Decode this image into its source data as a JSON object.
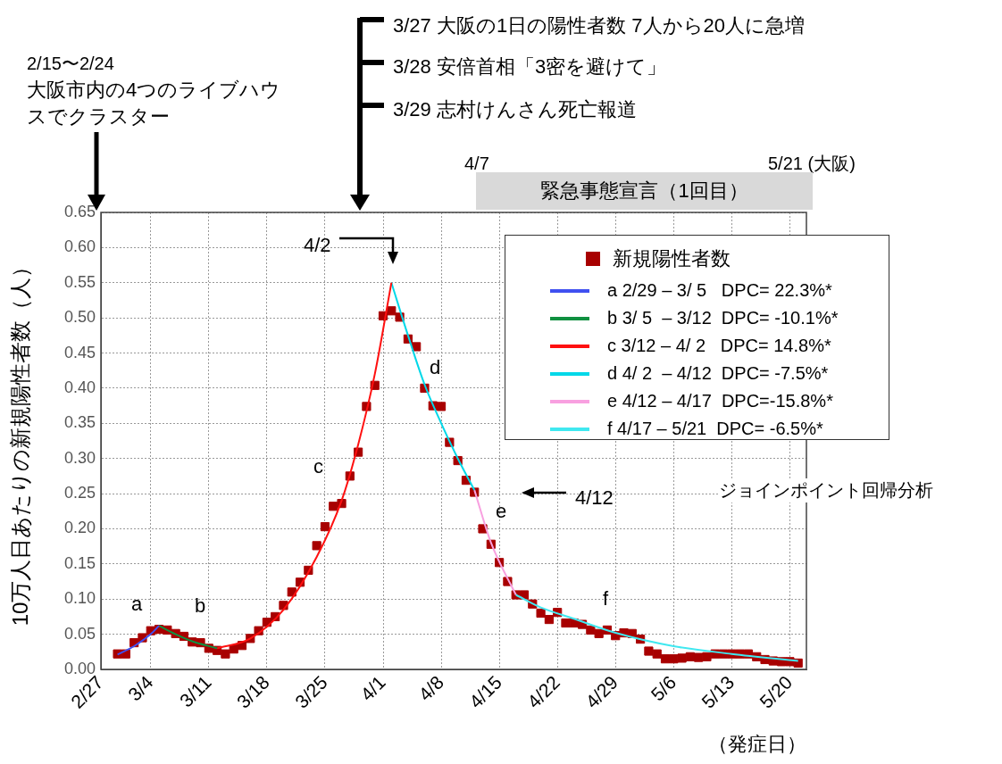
{
  "chart_data": {
    "type": "scatter",
    "ylabel": "10万人日あたりの新規陽性者数（人）",
    "xlabel": "（発症日）",
    "xlim": [
      "--02-27",
      "--05-22"
    ],
    "xticks": [
      {
        "value": "--02-27",
        "label": "2/27"
      },
      {
        "value": "--03-04",
        "label": "3/4"
      },
      {
        "value": "--03-11",
        "label": "3/11"
      },
      {
        "value": "--03-18",
        "label": "3/18"
      },
      {
        "value": "--03-25",
        "label": "3/25"
      },
      {
        "value": "--04-01",
        "label": "4/1"
      },
      {
        "value": "--04-08",
        "label": "4/8"
      },
      {
        "value": "--04-15",
        "label": "4/15"
      },
      {
        "value": "--04-22",
        "label": "4/22"
      },
      {
        "value": "--04-29",
        "label": "4/29"
      },
      {
        "value": "--05-06",
        "label": "5/6"
      },
      {
        "value": "--05-13",
        "label": "5/13"
      },
      {
        "value": "--05-20",
        "label": "5/20"
      }
    ],
    "ylim": [
      0,
      0.65
    ],
    "yticks": [
      {
        "value": 0,
        "label": "0.00"
      },
      {
        "value": 0.05,
        "label": "0.05"
      },
      {
        "value": 0.1,
        "label": "0.10"
      },
      {
        "value": 0.15,
        "label": "0.15"
      },
      {
        "value": 0.2,
        "label": "0.20"
      },
      {
        "value": 0.25,
        "label": "0.25"
      },
      {
        "value": 0.3,
        "label": "0.30"
      },
      {
        "value": 0.35,
        "label": "0.35"
      },
      {
        "value": 0.4,
        "label": "0.40"
      },
      {
        "value": 0.45,
        "label": "0.45"
      },
      {
        "value": 0.5,
        "label": "0.50"
      },
      {
        "value": 0.55,
        "label": "0.55"
      },
      {
        "value": 0.6,
        "label": "0.60"
      },
      {
        "value": 0.65,
        "label": "0.65"
      }
    ],
    "grid": true,
    "legend": "top right",
    "series": [
      {
        "name": "新規陽性者数",
        "color": "#a80000",
        "marker": "square",
        "x": [
          "--02-29",
          "--03-01",
          "--03-02",
          "--03-03",
          "--03-04",
          "--03-05",
          "--03-06",
          "--03-07",
          "--03-08",
          "--03-09",
          "--03-10",
          "--03-11",
          "--03-12",
          "--03-13",
          "--03-14",
          "--03-15",
          "--03-16",
          "--03-17",
          "--03-18",
          "--03-19",
          "--03-20",
          "--03-21",
          "--03-22",
          "--03-23",
          "--03-24",
          "--03-25",
          "--03-26",
          "--03-27",
          "--03-28",
          "--03-29",
          "--03-30",
          "--03-31",
          "--04-01",
          "--04-02",
          "--04-03",
          "--04-04",
          "--04-05",
          "--04-06",
          "--04-07",
          "--04-08",
          "--04-09",
          "--04-10",
          "--04-11",
          "--04-12",
          "--04-13",
          "--04-14",
          "--04-15",
          "--04-16",
          "--04-17",
          "--04-18",
          "--04-19",
          "--04-20",
          "--04-21",
          "--04-22",
          "--04-23",
          "--04-24",
          "--04-25",
          "--04-26",
          "--04-27",
          "--04-28",
          "--04-29",
          "--04-30",
          "--05-01",
          "--05-02",
          "--05-03",
          "--05-04",
          "--05-05",
          "--05-06",
          "--05-07",
          "--05-08",
          "--05-09",
          "--05-10",
          "--05-11",
          "--05-12",
          "--05-13",
          "--05-14",
          "--05-15",
          "--05-16",
          "--05-17",
          "--05-18",
          "--05-19",
          "--05-20",
          "--05-21"
        ],
        "values": [
          0.022,
          0.022,
          0.038,
          0.045,
          0.055,
          0.057,
          0.056,
          0.051,
          0.047,
          0.039,
          0.038,
          0.03,
          0.027,
          0.022,
          0.029,
          0.034,
          0.044,
          0.055,
          0.067,
          0.075,
          0.091,
          0.11,
          0.124,
          0.141,
          0.176,
          0.203,
          0.232,
          0.236,
          0.275,
          0.309,
          0.374,
          0.404,
          0.503,
          0.51,
          0.501,
          0.47,
          0.459,
          0.4,
          0.375,
          0.374,
          0.323,
          0.297,
          0.269,
          0.252,
          0.2,
          0.178,
          0.152,
          0.125,
          0.106,
          0.106,
          0.093,
          0.08,
          0.071,
          0.081,
          0.066,
          0.066,
          0.064,
          0.056,
          0.051,
          0.056,
          0.048,
          0.052,
          0.051,
          0.043,
          0.026,
          0.022,
          0.015,
          0.015,
          0.016,
          0.018,
          0.017,
          0.018,
          0.022,
          0.022,
          0.022,
          0.022,
          0.022,
          0.018,
          0.014,
          0.012,
          0.011,
          0.011,
          0.009
        ]
      },
      {
        "type": "line",
        "name": "a 2/29 – 3/ 5   DPC= 22.3%*",
        "color": "#4050f0",
        "x": [
          "--02-29",
          "--03-02",
          "--03-04",
          "--03-05"
        ],
        "values": [
          0.021,
          0.033,
          0.05,
          0.062
        ]
      },
      {
        "type": "line",
        "name": "b 3/ 5  – 3/12  DPC= -10.1%*",
        "color": "#109040",
        "x": [
          "--03-05",
          "--03-07",
          "--03-09",
          "--03-12"
        ],
        "values": [
          0.062,
          0.05,
          0.04,
          0.03
        ]
      },
      {
        "type": "line",
        "name": "c 3/12 – 4/ 2   DPC= 14.8%*",
        "color": "#ff1010",
        "x": [
          "--03-12",
          "--03-16",
          "--03-20",
          "--03-24",
          "--03-27",
          "--03-29",
          "--03-31",
          "--04-02"
        ],
        "values": [
          0.03,
          0.044,
          0.085,
          0.16,
          0.24,
          0.32,
          0.42,
          0.55
        ]
      },
      {
        "type": "line",
        "name": "d 4/ 2  – 4/12  DPC= -7.5%*",
        "color": "#00d8e8",
        "x": [
          "--04-02",
          "--04-04",
          "--04-06",
          "--04-08",
          "--04-10",
          "--04-12"
        ],
        "values": [
          0.55,
          0.475,
          0.405,
          0.35,
          0.3,
          0.255
        ]
      },
      {
        "type": "line",
        "name": "e 4/12 – 4/17  DPC=-15.8%*",
        "color": "#f8a0e0",
        "x": [
          "--04-12",
          "--04-14",
          "--04-17"
        ],
        "values": [
          0.255,
          0.18,
          0.106
        ]
      },
      {
        "type": "line",
        "name": "f 4/17 – 5/21  DPC= -6.5%*",
        "color": "#40e8f0",
        "x": [
          "--04-17",
          "--04-20",
          "--04-24",
          "--04-29",
          "--05-06",
          "--05-13",
          "--05-21"
        ],
        "values": [
          0.106,
          0.088,
          0.072,
          0.052,
          0.033,
          0.022,
          0.012
        ]
      }
    ],
    "annotations": [
      "2/15〜2/24",
      "大阪市内の4つのライブハウスでクラスター",
      "3/27 大阪の1日の陽性者数 7人から20人に急増",
      "3/28 安倍首相「3密を避けて」",
      "3/29 志村けんさん死亡報道",
      "4/7",
      "5/21 (大阪)",
      "緊急事態宣言（1回目）",
      "ジョインポイント回帰分析",
      "a",
      "b",
      "c",
      "d",
      "e",
      "f",
      "4/2",
      "4/12"
    ]
  }
}
